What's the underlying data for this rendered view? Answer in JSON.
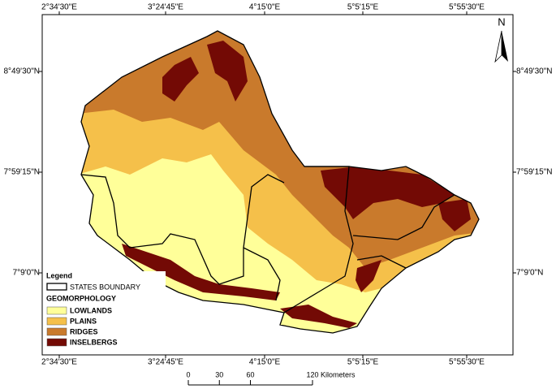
{
  "map": {
    "top_labels": [
      "2°34'30\"E",
      "3°24'45\"E",
      "4°15'0\"E",
      "5°5'15\"E",
      "5°55'30\"E"
    ],
    "bottom_labels": [
      "2°34'30\"E",
      "3°24'45\"E",
      "4°15'0\"E",
      "5°5'15\"E",
      "5°55'30\"E"
    ],
    "left_labels": [
      "8°49'30\"N",
      "7°59'15\"N",
      "7°9'0\"N"
    ],
    "right_labels": [
      "8°49'30\"N",
      "7°59'15\"N",
      "7°9'0\"N"
    ],
    "north": "N",
    "legend": {
      "title": "Legend",
      "boundary": "STATES BOUNDARY",
      "section": "GEOMORPHOLOGY",
      "classes": [
        {
          "name": "LOWLANDS",
          "color": "#ffff99"
        },
        {
          "name": "PLAINS",
          "color": "#f5c04a"
        },
        {
          "name": "RIDGES",
          "color": "#c97a2c"
        },
        {
          "name": "INSELBERGS",
          "color": "#730a05"
        }
      ]
    },
    "scale": {
      "ticks": [
        0,
        30,
        60,
        120
      ],
      "unit": "Kilometers"
    }
  }
}
